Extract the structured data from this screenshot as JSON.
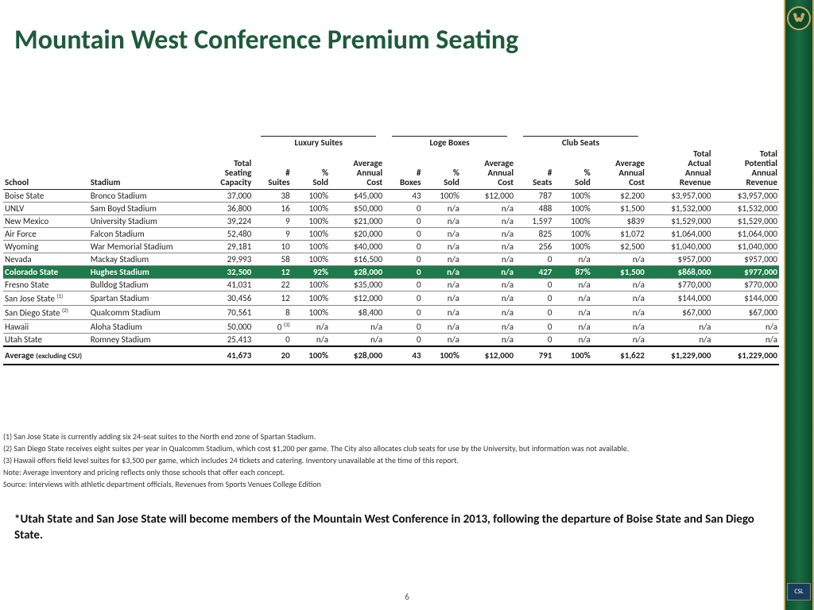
{
  "title": "Mountain West Conference Premium Seating",
  "page_number": "6",
  "colors": {
    "title": "#1e5b3a",
    "highlight_bg": "#1e7a4a",
    "highlight_text": "#ffffff",
    "sidebar_gradient": [
      "#0a4d2e",
      "#1a6b42"
    ],
    "sidebar_border": "#c9a95f"
  },
  "table": {
    "group_headers": [
      "Luxury Suites",
      "Loge Boxes",
      "Club Seats"
    ],
    "columns": [
      "School",
      "Stadium",
      "Total Seating Capacity",
      "# Suites",
      "% Sold",
      "Average Annual Cost",
      "# Boxes",
      "% Sold",
      "Average Annual Cost",
      "# Seats",
      "% Sold",
      "Average Annual Cost",
      "Total Actual Annual Revenue",
      "Total Potential Annual Revenue"
    ],
    "rows": [
      {
        "school": "Boise State",
        "stadium": "Bronco Stadium",
        "cap": "37,000",
        "ls_n": "38",
        "ls_p": "100%",
        "ls_c": "$45,000",
        "lb_n": "43",
        "lb_p": "100%",
        "lb_c": "$12,000",
        "cs_n": "787",
        "cs_p": "100%",
        "cs_c": "$2,200",
        "act": "$3,957,000",
        "pot": "$3,957,000"
      },
      {
        "school": "UNLV",
        "stadium": "Sam Boyd Stadium",
        "cap": "36,800",
        "ls_n": "16",
        "ls_p": "100%",
        "ls_c": "$50,000",
        "lb_n": "0",
        "lb_p": "n/a",
        "lb_c": "n/a",
        "cs_n": "488",
        "cs_p": "100%",
        "cs_c": "$1,500",
        "act": "$1,532,000",
        "pot": "$1,532,000"
      },
      {
        "school": "New Mexico",
        "stadium": "University Stadium",
        "cap": "39,224",
        "ls_n": "9",
        "ls_p": "100%",
        "ls_c": "$21,000",
        "lb_n": "0",
        "lb_p": "n/a",
        "lb_c": "n/a",
        "cs_n": "1,597",
        "cs_p": "100%",
        "cs_c": "$839",
        "act": "$1,529,000",
        "pot": "$1,529,000"
      },
      {
        "school": "Air Force",
        "stadium": "Falcon Stadium",
        "cap": "52,480",
        "ls_n": "9",
        "ls_p": "100%",
        "ls_c": "$20,000",
        "lb_n": "0",
        "lb_p": "n/a",
        "lb_c": "n/a",
        "cs_n": "825",
        "cs_p": "100%",
        "cs_c": "$1,072",
        "act": "$1,064,000",
        "pot": "$1,064,000"
      },
      {
        "school": "Wyoming",
        "stadium": "War Memorial Stadium",
        "cap": "29,181",
        "ls_n": "10",
        "ls_p": "100%",
        "ls_c": "$40,000",
        "lb_n": "0",
        "lb_p": "n/a",
        "lb_c": "n/a",
        "cs_n": "256",
        "cs_p": "100%",
        "cs_c": "$2,500",
        "act": "$1,040,000",
        "pot": "$1,040,000"
      },
      {
        "school": "Nevada",
        "stadium": "Mackay Stadium",
        "cap": "29,993",
        "ls_n": "58",
        "ls_p": "100%",
        "ls_c": "$16,500",
        "lb_n": "0",
        "lb_p": "n/a",
        "lb_c": "n/a",
        "cs_n": "0",
        "cs_p": "n/a",
        "cs_c": "n/a",
        "act": "$957,000",
        "pot": "$957,000"
      },
      {
        "school": "Colorado State",
        "stadium": "Hughes Stadium",
        "cap": "32,500",
        "ls_n": "12",
        "ls_p": "92%",
        "ls_c": "$28,000",
        "lb_n": "0",
        "lb_p": "n/a",
        "lb_c": "n/a",
        "cs_n": "427",
        "cs_p": "87%",
        "cs_c": "$1,500",
        "act": "$868,000",
        "pot": "$977,000",
        "highlight": true
      },
      {
        "school": "Fresno State",
        "stadium": "Bulldog Stadium",
        "cap": "41,031",
        "ls_n": "22",
        "ls_p": "100%",
        "ls_c": "$35,000",
        "lb_n": "0",
        "lb_p": "n/a",
        "lb_c": "n/a",
        "cs_n": "0",
        "cs_p": "n/a",
        "cs_c": "n/a",
        "act": "$770,000",
        "pot": "$770,000"
      },
      {
        "school": "San Jose State",
        "sup": "(1)",
        "stadium": "Spartan Stadium",
        "cap": "30,456",
        "ls_n": "12",
        "ls_p": "100%",
        "ls_c": "$12,000",
        "lb_n": "0",
        "lb_p": "n/a",
        "lb_c": "n/a",
        "cs_n": "0",
        "cs_p": "n/a",
        "cs_c": "n/a",
        "act": "$144,000",
        "pot": "$144,000"
      },
      {
        "school": "San Diego State",
        "sup": "(2)",
        "stadium": "Qualcomm Stadium",
        "cap": "70,561",
        "ls_n": "8",
        "ls_p": "100%",
        "ls_c": "$8,400",
        "lb_n": "0",
        "lb_p": "n/a",
        "lb_c": "n/a",
        "cs_n": "0",
        "cs_p": "n/a",
        "cs_c": "n/a",
        "act": "$67,000",
        "pot": "$67,000"
      },
      {
        "school": "Hawaii",
        "stadium": "Aloha Stadium",
        "cap": "50,000",
        "ls_n": "0",
        "ls_sup": "(3)",
        "ls_p": "n/a",
        "ls_c": "n/a",
        "lb_n": "0",
        "lb_p": "n/a",
        "lb_c": "n/a",
        "cs_n": "0",
        "cs_p": "n/a",
        "cs_c": "n/a",
        "act": "n/a",
        "pot": "n/a"
      },
      {
        "school": "Utah State",
        "stadium": "Romney Stadium",
        "cap": "25,413",
        "ls_n": "0",
        "ls_p": "n/a",
        "ls_c": "n/a",
        "lb_n": "0",
        "lb_p": "n/a",
        "lb_c": "n/a",
        "cs_n": "0",
        "cs_p": "n/a",
        "cs_c": "n/a",
        "act": "n/a",
        "pot": "n/a"
      }
    ],
    "average": {
      "label": "Average",
      "sublabel": "(excluding CSU)",
      "cap": "41,673",
      "ls_n": "20",
      "ls_p": "100%",
      "ls_c": "$28,000",
      "lb_n": "43",
      "lb_p": "100%",
      "lb_c": "$12,000",
      "cs_n": "791",
      "cs_p": "100%",
      "cs_c": "$1,622",
      "act": "$1,229,000",
      "pot": "$1,229,000"
    }
  },
  "footnotes": [
    "(1) San Jose State is currently adding six 24-seat suites to the North end zone of Spartan Stadium.",
    "(2) San Diego State receives eight suites per year in Qualcomm Stadium, which cost $1,200 per game. The City also allocates club seats for use by the University, but information was not available.",
    "(3) Hawaii offers field level suites for $3,500 per game, which includes 24 tickets and catering. Inventory unavailable at the time of this report.",
    "Note: Average inventory and pricing reflects only those schools that offer each concept.",
    "Source: Interviews with athletic department officials, Revenues from Sports Venues College Edition"
  ],
  "bottom_note": "*Utah State and San Jose State will become members of the Mountain West Conference in 2013, following the departure of Boise State and San Diego State.",
  "logo_labels": {
    "csl": "CSL"
  }
}
